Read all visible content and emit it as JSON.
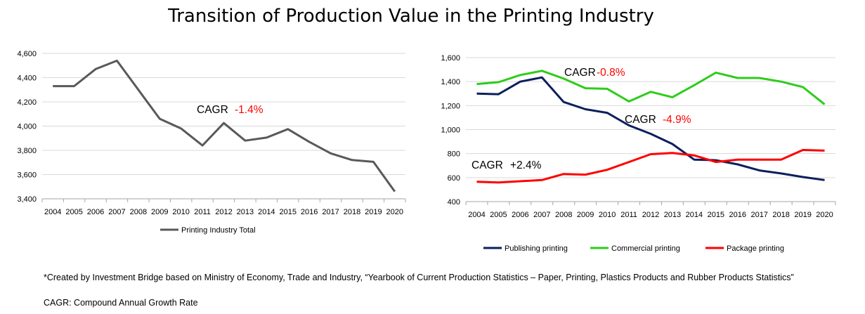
{
  "title": "Transition of Production Value in the Printing Industry",
  "chart_data": [
    {
      "type": "line",
      "title": "",
      "x": [
        "2004",
        "2005",
        "2006",
        "2007",
        "2008",
        "2009",
        "2010",
        "2011",
        "2012",
        "2013",
        "2014",
        "2015",
        "2016",
        "2017",
        "2018",
        "2019",
        "2020"
      ],
      "yticks": [
        "3,400",
        "3,600",
        "3,800",
        "4,000",
        "4,200",
        "4,400",
        "4,600"
      ],
      "ylim": [
        3400,
        4600
      ],
      "grid": true,
      "legend_position": "bottom",
      "series": [
        {
          "name": "Printing Industry Total",
          "color": "#595959",
          "values": [
            4330,
            4330,
            4470,
            4540,
            4300,
            4060,
            3980,
            3840,
            4025,
            3880,
            3905,
            3975,
            3870,
            3775,
            3720,
            3705,
            3460
          ]
        }
      ],
      "annotations": [
        {
          "label": "CAGR",
          "value": "-1.4%",
          "value_color": "#ff0000"
        }
      ]
    },
    {
      "type": "line",
      "title": "",
      "x": [
        "2004",
        "2005",
        "2006",
        "2007",
        "2008",
        "2009",
        "2010",
        "2011",
        "2012",
        "2013",
        "2014",
        "2015",
        "2016",
        "2017",
        "2018",
        "2019",
        "2020"
      ],
      "yticks": [
        "400",
        "600",
        "800",
        "1,000",
        "1,200",
        "1,400",
        "1,600"
      ],
      "ylim": [
        400,
        1600
      ],
      "grid": true,
      "legend_position": "bottom",
      "series": [
        {
          "name": "Publishing printing",
          "color": "#0d1f5c",
          "values": [
            1300,
            1295,
            1400,
            1435,
            1230,
            1170,
            1140,
            1035,
            965,
            880,
            750,
            745,
            710,
            660,
            635,
            605,
            580
          ]
        },
        {
          "name": "Commercial printing",
          "color": "#2ecc1a",
          "values": [
            1380,
            1395,
            1455,
            1490,
            1425,
            1345,
            1340,
            1235,
            1315,
            1270,
            1370,
            1475,
            1430,
            1430,
            1400,
            1355,
            1210
          ]
        },
        {
          "name": "Package printing",
          "color": "#ff0000",
          "values": [
            565,
            560,
            570,
            580,
            630,
            625,
            665,
            730,
            795,
            805,
            785,
            730,
            750,
            750,
            750,
            830,
            825
          ]
        }
      ],
      "annotations": [
        {
          "label": "CAGR",
          "value": "-0.8%",
          "value_color": "#ff0000"
        },
        {
          "label": "CAGR",
          "value": "-4.9%",
          "value_color": "#ff0000"
        },
        {
          "label": "CAGR",
          "value": "+2.4%",
          "value_color": "#000000"
        }
      ]
    }
  ],
  "notes": {
    "source": "*Created by Investment Bridge based on Ministry of Economy, Trade and Industry, “Yearbook of Current Production Statistics – Paper, Printing, Plastics Products and Rubber Products Statistics”",
    "cagr_definition": "CAGR: Compound Annual Growth Rate"
  }
}
